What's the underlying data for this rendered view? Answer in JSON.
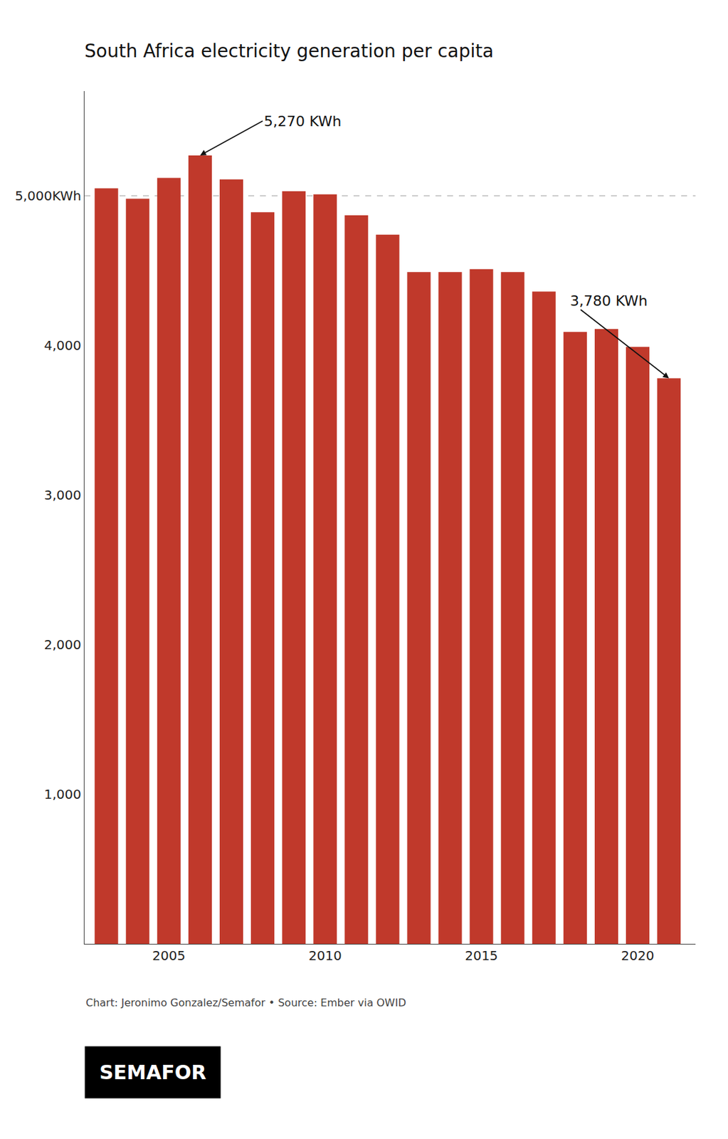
{
  "chart_data": {
    "type": "bar",
    "title": "South Africa electricity generation per capita",
    "x": [
      2003,
      2004,
      2005,
      2006,
      2007,
      2008,
      2009,
      2010,
      2011,
      2012,
      2013,
      2014,
      2015,
      2016,
      2017,
      2018,
      2019,
      2020,
      2021
    ],
    "values": [
      5050,
      4980,
      5120,
      5270,
      5110,
      4890,
      5030,
      5010,
      4870,
      4740,
      4490,
      4490,
      4510,
      4490,
      4360,
      4090,
      4110,
      3990,
      3780
    ],
    "color": "#C0392B",
    "xlim": [
      2002.3,
      2021.85
    ],
    "xticks": [
      2005,
      2010,
      2015,
      2020
    ],
    "ylim": [
      0,
      5700
    ],
    "yticks": [
      {
        "value": 1000,
        "label": "1,000"
      },
      {
        "value": 2000,
        "label": "2,000"
      },
      {
        "value": 3000,
        "label": "3,000"
      },
      {
        "value": 4000,
        "label": "4,000"
      },
      {
        "value": 5000,
        "label": "5,000KWh"
      }
    ],
    "reference_lines": [
      5000
    ],
    "grid": false,
    "annotations": [
      {
        "text": "5,270 KWh",
        "x": 2006,
        "y": 5270
      },
      {
        "text": "3,780 KWh",
        "x": 2021,
        "y": 3780
      }
    ],
    "footer": "Chart: Jeronimo Gonzalez/Semafor • Source: Ember via OWID",
    "banner": "SEMAFOR"
  }
}
